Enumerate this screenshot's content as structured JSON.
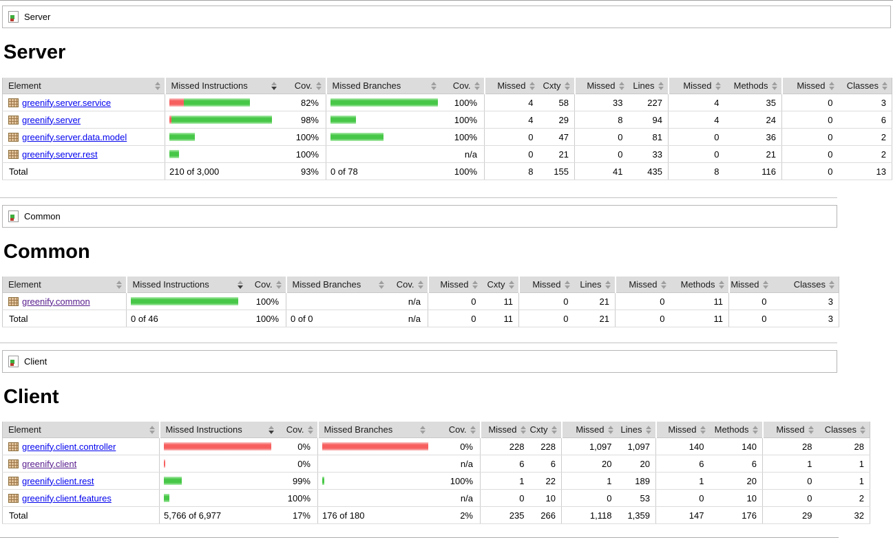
{
  "colors": {
    "link": "#0000ee",
    "link_visited": "#551a8b",
    "bar_green": "#47c747",
    "bar_green_light": "#b0ecb0",
    "bar_red": "#f75f5f",
    "bar_red_light": "#fbc3c3",
    "header_bg": "#dcdcdc"
  },
  "sections": [
    {
      "breadcrumb": {
        "label": "Server",
        "icon": "report-icon"
      },
      "heading": "Server",
      "table": {
        "columns": [
          {
            "label": "Element",
            "sort": "none"
          },
          {
            "label": "Missed Instructions",
            "sort": "desc"
          },
          {
            "label": "Cov.",
            "sort": "none"
          },
          {
            "label": "Missed Branches",
            "sort": "none"
          },
          {
            "label": "Cov.",
            "sort": "none"
          },
          {
            "label": "Missed",
            "sort": "none"
          },
          {
            "label": "Cxty",
            "sort": "none"
          },
          {
            "label": "Missed",
            "sort": "none"
          },
          {
            "label": "Lines",
            "sort": "none"
          },
          {
            "label": "Missed",
            "sort": "none"
          },
          {
            "label": "Methods",
            "sort": "none"
          },
          {
            "label": "Missed",
            "sort": "none"
          },
          {
            "label": "Classes",
            "sort": "none"
          }
        ],
        "rows": [
          {
            "element": "greenify.server.service",
            "visited": false,
            "instr_bar": {
              "red": 21,
              "green": 96
            },
            "instr_cov": "82%",
            "branch_bar": {
              "red": 0,
              "green": 156
            },
            "branch_cov": "100%",
            "cells": [
              "4",
              "58",
              "33",
              "227",
              "4",
              "35",
              "0",
              "3"
            ]
          },
          {
            "element": "greenify.server",
            "visited": false,
            "instr_bar": {
              "red": 3,
              "green": 146
            },
            "instr_cov": "98%",
            "branch_bar": {
              "red": 0,
              "green": 37
            },
            "branch_cov": "100%",
            "cells": [
              "4",
              "29",
              "8",
              "94",
              "4",
              "24",
              "0",
              "6"
            ]
          },
          {
            "element": "greenify.server.data.model",
            "visited": false,
            "instr_bar": {
              "red": 0,
              "green": 37
            },
            "instr_cov": "100%",
            "branch_bar": {
              "red": 0,
              "green": 77
            },
            "branch_cov": "100%",
            "cells": [
              "0",
              "47",
              "0",
              "81",
              "0",
              "36",
              "0",
              "2"
            ]
          },
          {
            "element": "greenify.server.rest",
            "visited": false,
            "instr_bar": {
              "red": 0,
              "green": 14
            },
            "instr_cov": "100%",
            "branch_bar": null,
            "branch_cov": "n/a",
            "cells": [
              "0",
              "21",
              "0",
              "33",
              "0",
              "21",
              "0",
              "2"
            ]
          }
        ],
        "total": {
          "label": "Total",
          "instr": "210 of 3,000",
          "instr_cov": "93%",
          "branch": "0 of 78",
          "branch_cov": "100%",
          "cells": [
            "8",
            "155",
            "41",
            "435",
            "8",
            "116",
            "0",
            "13"
          ]
        }
      }
    },
    {
      "breadcrumb": {
        "label": "Common",
        "icon": "report-icon"
      },
      "heading": "Common",
      "table": {
        "columns": [
          {
            "label": "Element",
            "sort": "none"
          },
          {
            "label": "Missed Instructions",
            "sort": "desc"
          },
          {
            "label": "Cov.",
            "sort": "none"
          },
          {
            "label": "Missed Branches",
            "sort": "none"
          },
          {
            "label": "Cov.",
            "sort": "none"
          },
          {
            "label": "Missed",
            "sort": "none"
          },
          {
            "label": "Cxty",
            "sort": "none"
          },
          {
            "label": "Missed",
            "sort": "none"
          },
          {
            "label": "Lines",
            "sort": "none"
          },
          {
            "label": "Missed",
            "sort": "none"
          },
          {
            "label": "Methods",
            "sort": "none"
          },
          {
            "label": "Missed",
            "sort": "none"
          },
          {
            "label": "Classes",
            "sort": "none"
          }
        ],
        "rows": [
          {
            "element": "greenify.common",
            "visited": true,
            "instr_bar": {
              "red": 0,
              "green": 156
            },
            "instr_cov": "100%",
            "branch_bar": null,
            "branch_cov": "n/a",
            "cells": [
              "0",
              "11",
              "0",
              "21",
              "0",
              "11",
              "0",
              "3"
            ]
          }
        ],
        "total": {
          "label": "Total",
          "instr": "0 of 46",
          "instr_cov": "100%",
          "branch": "0 of 0",
          "branch_cov": "n/a",
          "cells": [
            "0",
            "11",
            "0",
            "21",
            "0",
            "11",
            "0",
            "3"
          ]
        }
      }
    },
    {
      "breadcrumb": {
        "label": "Client",
        "icon": "report-icon"
      },
      "heading": "Client",
      "table": {
        "columns": [
          {
            "label": "Element",
            "sort": "none"
          },
          {
            "label": "Missed Instructions",
            "sort": "desc"
          },
          {
            "label": "Cov.",
            "sort": "none"
          },
          {
            "label": "Missed Branches",
            "sort": "none"
          },
          {
            "label": "Cov.",
            "sort": "none"
          },
          {
            "label": "Missed",
            "sort": "none"
          },
          {
            "label": "Cxty",
            "sort": "none"
          },
          {
            "label": "Missed",
            "sort": "none"
          },
          {
            "label": "Lines",
            "sort": "none"
          },
          {
            "label": "Missed",
            "sort": "none"
          },
          {
            "label": "Methods",
            "sort": "none"
          },
          {
            "label": "Missed",
            "sort": "none"
          },
          {
            "label": "Classes",
            "sort": "none"
          }
        ],
        "rows": [
          {
            "element": "greenify.client.controller",
            "visited": false,
            "instr_bar": {
              "red": 156,
              "green": 0
            },
            "instr_cov": "0%",
            "branch_bar": {
              "red": 154,
              "green": 0
            },
            "branch_cov": "0%",
            "cells": [
              "228",
              "228",
              "1,097",
              "1,097",
              "140",
              "140",
              "28",
              "28"
            ]
          },
          {
            "element": "greenify.client",
            "visited": true,
            "instr_bar": {
              "red": 2,
              "green": 0
            },
            "instr_cov": "0%",
            "branch_bar": null,
            "branch_cov": "n/a",
            "cells": [
              "6",
              "6",
              "20",
              "20",
              "6",
              "6",
              "1",
              "1"
            ]
          },
          {
            "element": "greenify.client.rest",
            "visited": false,
            "instr_bar": {
              "red": 0,
              "green": 26
            },
            "instr_cov": "99%",
            "branch_bar": {
              "red": 0,
              "green": 3
            },
            "branch_cov": "100%",
            "cells": [
              "1",
              "22",
              "1",
              "189",
              "1",
              "20",
              "0",
              "1"
            ]
          },
          {
            "element": "greenify.client.features",
            "visited": false,
            "instr_bar": {
              "red": 0,
              "green": 8
            },
            "instr_cov": "100%",
            "branch_bar": null,
            "branch_cov": "n/a",
            "cells": [
              "0",
              "10",
              "0",
              "53",
              "0",
              "10",
              "0",
              "2"
            ]
          }
        ],
        "total": {
          "label": "Total",
          "instr": "5,766 of 6,977",
          "instr_cov": "17%",
          "branch": "176 of 180",
          "branch_cov": "2%",
          "cells": [
            "235",
            "266",
            "1,118",
            "1,359",
            "147",
            "176",
            "29",
            "32"
          ]
        }
      }
    }
  ]
}
